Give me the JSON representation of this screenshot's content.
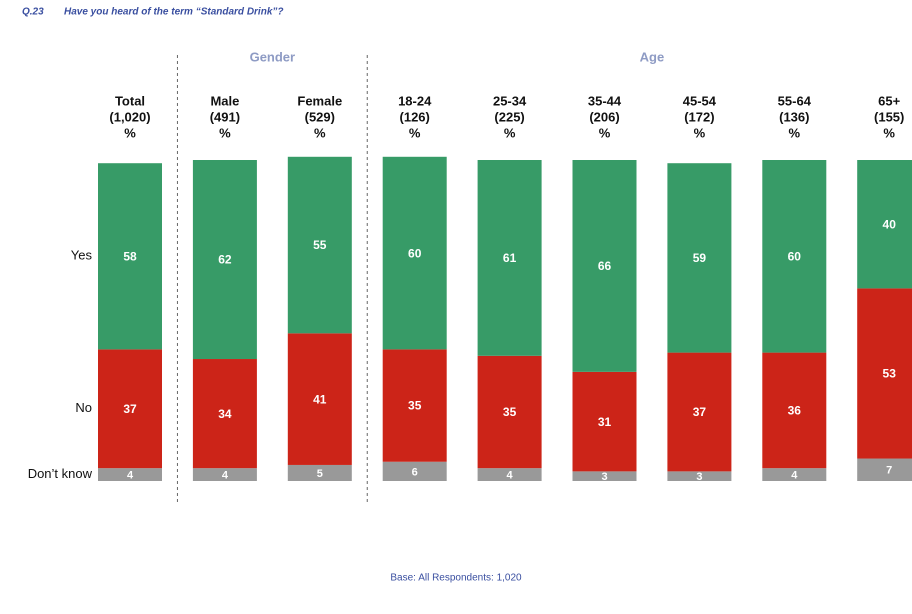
{
  "chart_data": {
    "type": "bar",
    "stacked": true,
    "question_number": "Q.23",
    "title": "Have you heard of the term “Standard Drink”?",
    "groups": [
      {
        "name": "Gender",
        "from": 1,
        "to": 2
      },
      {
        "name": "Age",
        "from": 3,
        "to": 8
      }
    ],
    "categories": [
      [
        "Total",
        "(1,020)",
        "%"
      ],
      [
        "Male",
        "(491)",
        "%"
      ],
      [
        "Female",
        "(529)",
        "%"
      ],
      [
        "18-24",
        "(126)",
        "%"
      ],
      [
        "25-34",
        "(225)",
        "%"
      ],
      [
        "35-44",
        "(206)",
        "%"
      ],
      [
        "45-54",
        "(172)",
        "%"
      ],
      [
        "55-64",
        "(136)",
        "%"
      ],
      [
        "65+",
        "(155)",
        "%"
      ]
    ],
    "series": [
      {
        "name": "Don’t know",
        "color": "#999999",
        "values": [
          4,
          4,
          5,
          6,
          4,
          3,
          3,
          4,
          7
        ]
      },
      {
        "name": "No",
        "color": "#cc2418",
        "values": [
          37,
          34,
          41,
          35,
          35,
          31,
          37,
          36,
          53
        ]
      },
      {
        "name": "Yes",
        "color": "#379b67",
        "values": [
          58,
          62,
          55,
          60,
          61,
          66,
          59,
          60,
          40
        ]
      }
    ],
    "ylim": [
      0,
      100
    ],
    "footnote": "Base:  All Respondents:  1,020"
  }
}
